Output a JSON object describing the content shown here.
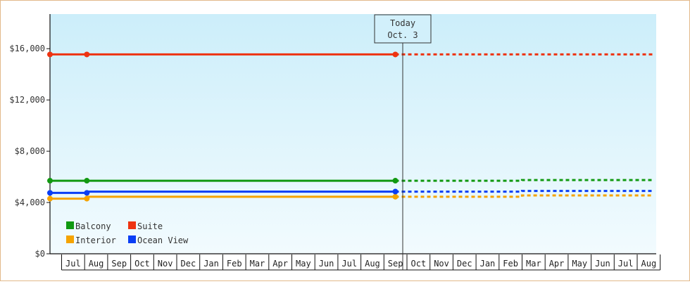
{
  "chart_data": {
    "type": "line",
    "y_axis": {
      "range": [
        0,
        18700
      ],
      "ticks": [
        0,
        4000,
        8000,
        12000,
        16000
      ],
      "tick_labels": [
        "$0",
        "$4,000",
        "$8,000",
        "$12,000",
        "$16,000"
      ]
    },
    "x_axis": {
      "month_labels": [
        "Jul",
        "Aug",
        "Sep",
        "Oct",
        "Nov",
        "Dec",
        "Jan",
        "Feb",
        "Mar",
        "Apr",
        "May",
        "Jun",
        "Jul",
        "Aug",
        "Sep",
        "Oct",
        "Nov",
        "Dec",
        "Jan",
        "Feb",
        "Mar",
        "Apr",
        "May",
        "Jun",
        "Jul",
        "Aug"
      ]
    },
    "today_marker": {
      "line1": "Today",
      "line2": "Oct. 3"
    },
    "series": [
      {
        "name": "Balcony",
        "color": "#119911",
        "points": [
          [
            0,
            5700
          ],
          [
            1.6,
            5700
          ],
          [
            15,
            5700
          ]
        ],
        "forecast": [
          [
            15,
            5700
          ],
          [
            20.5,
            5700
          ],
          [
            20.5,
            5750
          ],
          [
            26.2,
            5750
          ]
        ]
      },
      {
        "name": "Suite",
        "color": "#ee3311",
        "points": [
          [
            0,
            15550
          ],
          [
            1.6,
            15550
          ],
          [
            15,
            15550
          ]
        ],
        "forecast": [
          [
            15,
            15550
          ],
          [
            26.2,
            15550
          ]
        ]
      },
      {
        "name": "Interior",
        "color": "#f5a300",
        "points": [
          [
            0,
            4300
          ],
          [
            1.6,
            4300
          ],
          [
            1.6,
            4450
          ],
          [
            15,
            4450
          ]
        ],
        "forecast": [
          [
            15,
            4450
          ],
          [
            20.5,
            4450
          ],
          [
            20.5,
            4550
          ],
          [
            26.2,
            4550
          ]
        ]
      },
      {
        "name": "Ocean View",
        "color": "#0a3ef5",
        "points": [
          [
            0,
            4750
          ],
          [
            1.6,
            4750
          ],
          [
            1.6,
            4850
          ],
          [
            15,
            4850
          ]
        ],
        "forecast": [
          [
            15,
            4850
          ],
          [
            20.5,
            4850
          ],
          [
            20.5,
            4900
          ],
          [
            26.2,
            4900
          ]
        ]
      }
    ],
    "legend": {
      "placement": "bottom-left",
      "order": [
        "Balcony",
        "Suite",
        "Interior",
        "Ocean View"
      ]
    },
    "background_gradient": [
      "#cceefa",
      "#f2fbfe"
    ]
  }
}
